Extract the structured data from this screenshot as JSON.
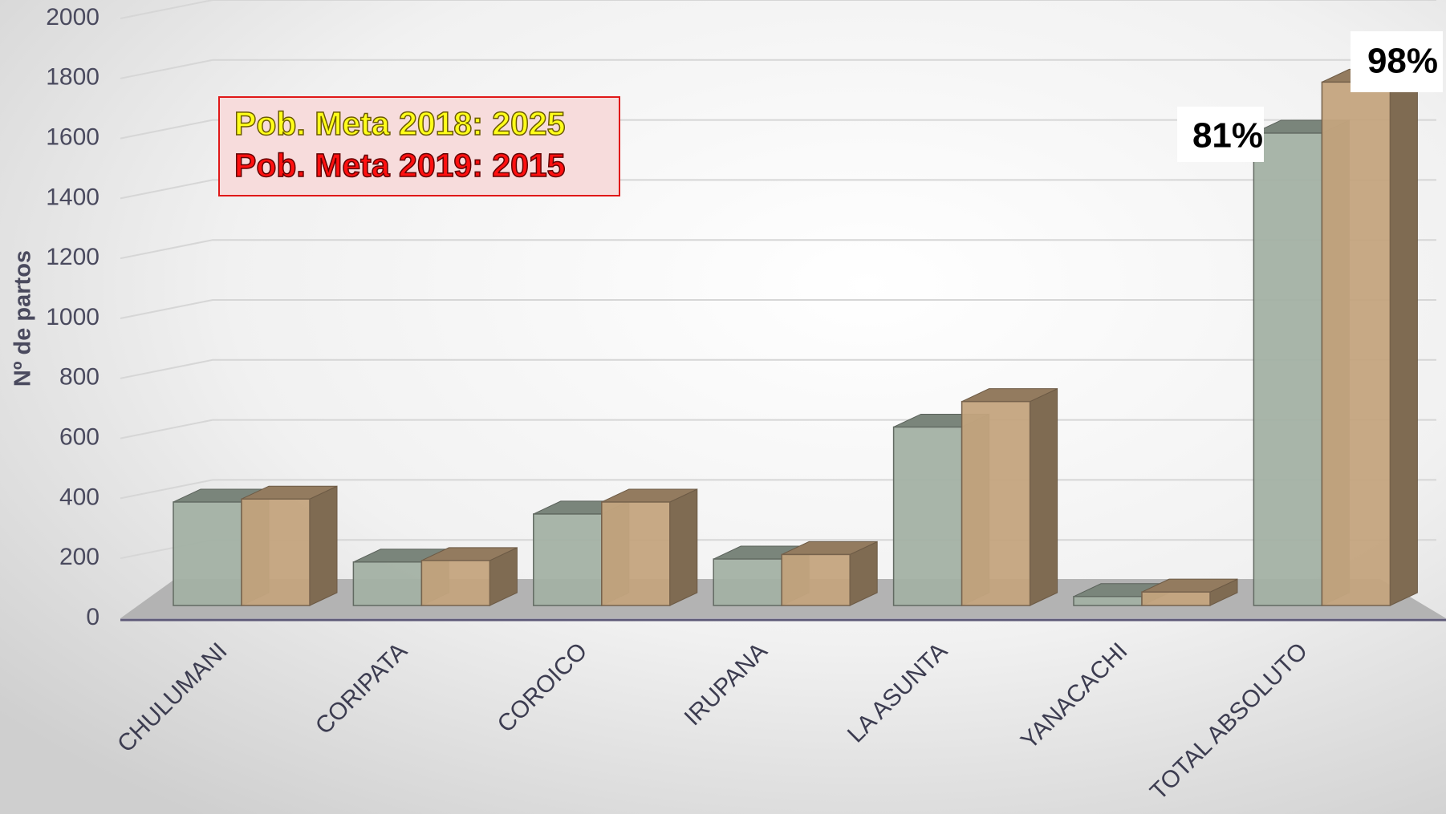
{
  "chart_data": {
    "type": "bar3d",
    "y_label": "Nº de partos",
    "categories": [
      "CHULUMANI",
      "CORIPATA",
      "COROICO",
      "IRUPANA",
      "LA ASUNTA",
      "YANACACHI",
      "TOTAL  ABSOLUTO"
    ],
    "series": [
      {
        "color": "#a3b1a4",
        "values": [
          345,
          145,
          305,
          155,
          595,
          30,
          1575
        ]
      },
      {
        "color": "#c4a47e",
        "values": [
          355,
          150,
          345,
          170,
          680,
          45,
          1745
        ]
      }
    ],
    "ylim": [
      0,
      2000
    ],
    "yticks": [
      0,
      200,
      400,
      600,
      800,
      1000,
      1200,
      1400,
      1600,
      1800,
      2000
    ],
    "grid": true,
    "notes": [
      "Pob. Meta 2018: 2025",
      "Pob. Meta 2019: 2015"
    ],
    "annotations": [
      "81%",
      "98%"
    ]
  }
}
